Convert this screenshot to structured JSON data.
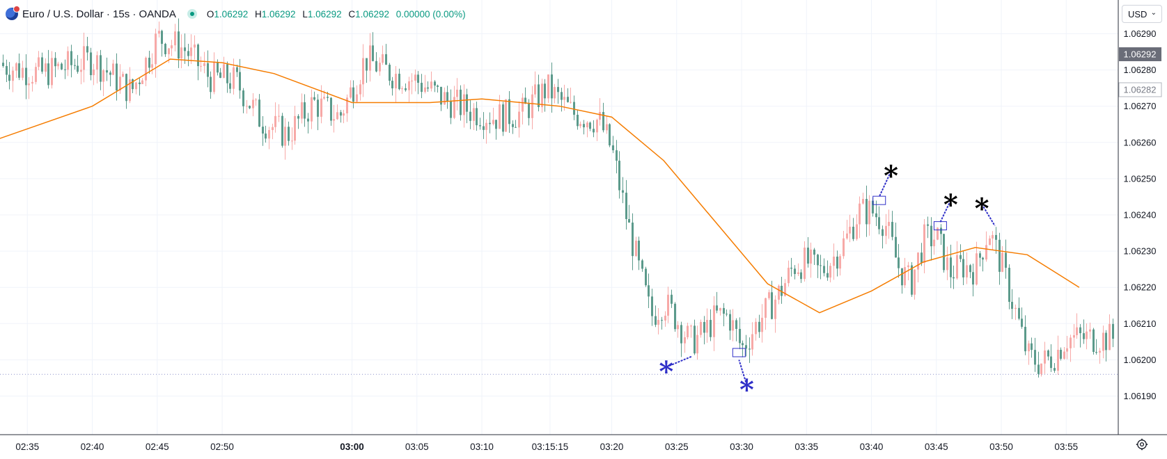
{
  "legend": {
    "symbol_icon": "euro-flag-icon",
    "title": "Euro / U.S. Dollar · 15s · OANDA",
    "o_label": "O",
    "o": "1.06292",
    "h_label": "H",
    "h": "1.06292",
    "l_label": "L",
    "l": "1.06292",
    "c_label": "C",
    "c": "1.06292",
    "change": "0.00000 (0.00%)"
  },
  "currency_selector": {
    "value": "USD",
    "icon": "chevron-down-icon"
  },
  "settings_icon": "gear-icon",
  "colors": {
    "up": "#f7a9a7",
    "down": "#5b9a8b",
    "ma": "#f57c00",
    "grid": "#f0f3fa",
    "annotation_blue": "#3030c8",
    "annotation_black": "#000000"
  },
  "chart_data": {
    "type": "candlestick",
    "ylim": [
      1.06186,
      1.06306
    ],
    "yticks": [
      1.0619,
      1.062,
      1.0621,
      1.0622,
      1.0623,
      1.0624,
      1.0625,
      1.0626,
      1.0627,
      1.0628,
      1.0629
    ],
    "ytick_labels": [
      "1.06190",
      "1.06200",
      "1.06210",
      "1.06220",
      "1.06230",
      "1.06240",
      "1.06250",
      "1.06260",
      "1.06270",
      "1.06280",
      "1.06290"
    ],
    "xtick_labels": [
      "02:35",
      "02:40",
      "02:45",
      "02:50",
      "03:00",
      "03:05",
      "03:10",
      "03:15:15",
      "03:20",
      "03:25",
      "03:30",
      "03:35",
      "03:40",
      "03:45",
      "03:50",
      "03:55"
    ],
    "xtick_minutes": [
      35,
      40,
      45,
      50,
      60,
      65,
      70,
      75.25,
      80,
      85,
      90,
      95,
      100,
      105,
      110,
      115
    ],
    "bold_tick": "03:00",
    "current_price_label": "1.06292",
    "secondary_price_label": "1.06282",
    "price_line": 1.06196,
    "ma_series": [
      [
        32,
        1.0626
      ],
      [
        40,
        1.0627
      ],
      [
        46,
        1.06283
      ],
      [
        50,
        1.06282
      ],
      [
        54,
        1.06279
      ],
      [
        60,
        1.06271
      ],
      [
        66,
        1.06271
      ],
      [
        70,
        1.06272
      ],
      [
        76,
        1.0627
      ],
      [
        80,
        1.06267
      ],
      [
        84,
        1.06255
      ],
      [
        88,
        1.06238
      ],
      [
        92,
        1.06221
      ],
      [
        96,
        1.06213
      ],
      [
        100,
        1.06219
      ],
      [
        104,
        1.06227
      ],
      [
        108,
        1.06231
      ],
      [
        112,
        1.06229
      ],
      [
        116,
        1.0622
      ]
    ],
    "close_path": [
      [
        32,
        1.06282
      ],
      [
        36,
        1.06279
      ],
      [
        40,
        1.06283
      ],
      [
        43,
        1.06274
      ],
      [
        45,
        1.06289
      ],
      [
        47,
        1.06286
      ],
      [
        49,
        1.06278
      ],
      [
        51,
        1.06277
      ],
      [
        53,
        1.06266
      ],
      [
        55,
        1.06262
      ],
      [
        57,
        1.06271
      ],
      [
        59,
        1.06267
      ],
      [
        61,
        1.06283
      ],
      [
        63,
        1.06279
      ],
      [
        65,
        1.06277
      ],
      [
        67,
        1.06272
      ],
      [
        69,
        1.06269
      ],
      [
        71,
        1.06267
      ],
      [
        73,
        1.06268
      ],
      [
        75,
        1.06275
      ],
      [
        77,
        1.06268
      ],
      [
        79,
        1.06266
      ],
      [
        80,
        1.06258
      ],
      [
        81,
        1.06241
      ],
      [
        82,
        1.06226
      ],
      [
        83,
        1.06212
      ],
      [
        84,
        1.06216
      ],
      [
        85,
        1.06211
      ],
      [
        86,
        1.06205
      ],
      [
        87,
        1.06207
      ],
      [
        88,
        1.06212
      ],
      [
        89,
        1.06212
      ],
      [
        90,
        1.06203
      ],
      [
        91,
        1.06209
      ],
      [
        92,
        1.06214
      ],
      [
        93,
        1.06219
      ],
      [
        94,
        1.06226
      ],
      [
        95,
        1.06227
      ],
      [
        96,
        1.06224
      ],
      [
        97,
        1.06228
      ],
      [
        98,
        1.06233
      ],
      [
        99,
        1.06241
      ],
      [
        100,
        1.06241
      ],
      [
        101,
        1.06238
      ],
      [
        102,
        1.06226
      ],
      [
        103,
        1.06221
      ],
      [
        104,
        1.06233
      ],
      [
        105,
        1.06234
      ],
      [
        106,
        1.06224
      ],
      [
        107,
        1.06226
      ],
      [
        108,
        1.06225
      ],
      [
        109,
        1.06236
      ],
      [
        110,
        1.06226
      ],
      [
        111,
        1.06214
      ],
      [
        112,
        1.06201
      ],
      [
        113,
        1.06199
      ],
      [
        114,
        1.06201
      ],
      [
        115,
        1.06206
      ]
    ],
    "annotations": [
      {
        "glyph": "*",
        "color": "blue",
        "minute": 84.2,
        "price": 1.06198,
        "leader_to": [
          86.2,
          1.06201
        ]
      },
      {
        "glyph": "*",
        "color": "blue",
        "minute": 90.4,
        "price": 1.06193,
        "leader_to": [
          89.8,
          1.062
        ]
      },
      {
        "glyph": "*",
        "color": "black",
        "minute": 101.5,
        "price": 1.06252,
        "leader_to": [
          100.6,
          1.06245
        ]
      },
      {
        "glyph": "*",
        "color": "black",
        "minute": 106.1,
        "price": 1.06244,
        "leader_to": [
          105.3,
          1.06238
        ]
      },
      {
        "glyph": "*",
        "color": "black",
        "minute": 108.5,
        "price": 1.06243,
        "leader_to": [
          109.5,
          1.06237
        ]
      }
    ],
    "boxes": [
      {
        "minute": 89.8,
        "price": 1.06202,
        "color": "blue"
      },
      {
        "minute": 100.6,
        "price": 1.06244,
        "color": "blue"
      },
      {
        "minute": 105.3,
        "price": 1.06237,
        "color": "blue"
      }
    ]
  }
}
